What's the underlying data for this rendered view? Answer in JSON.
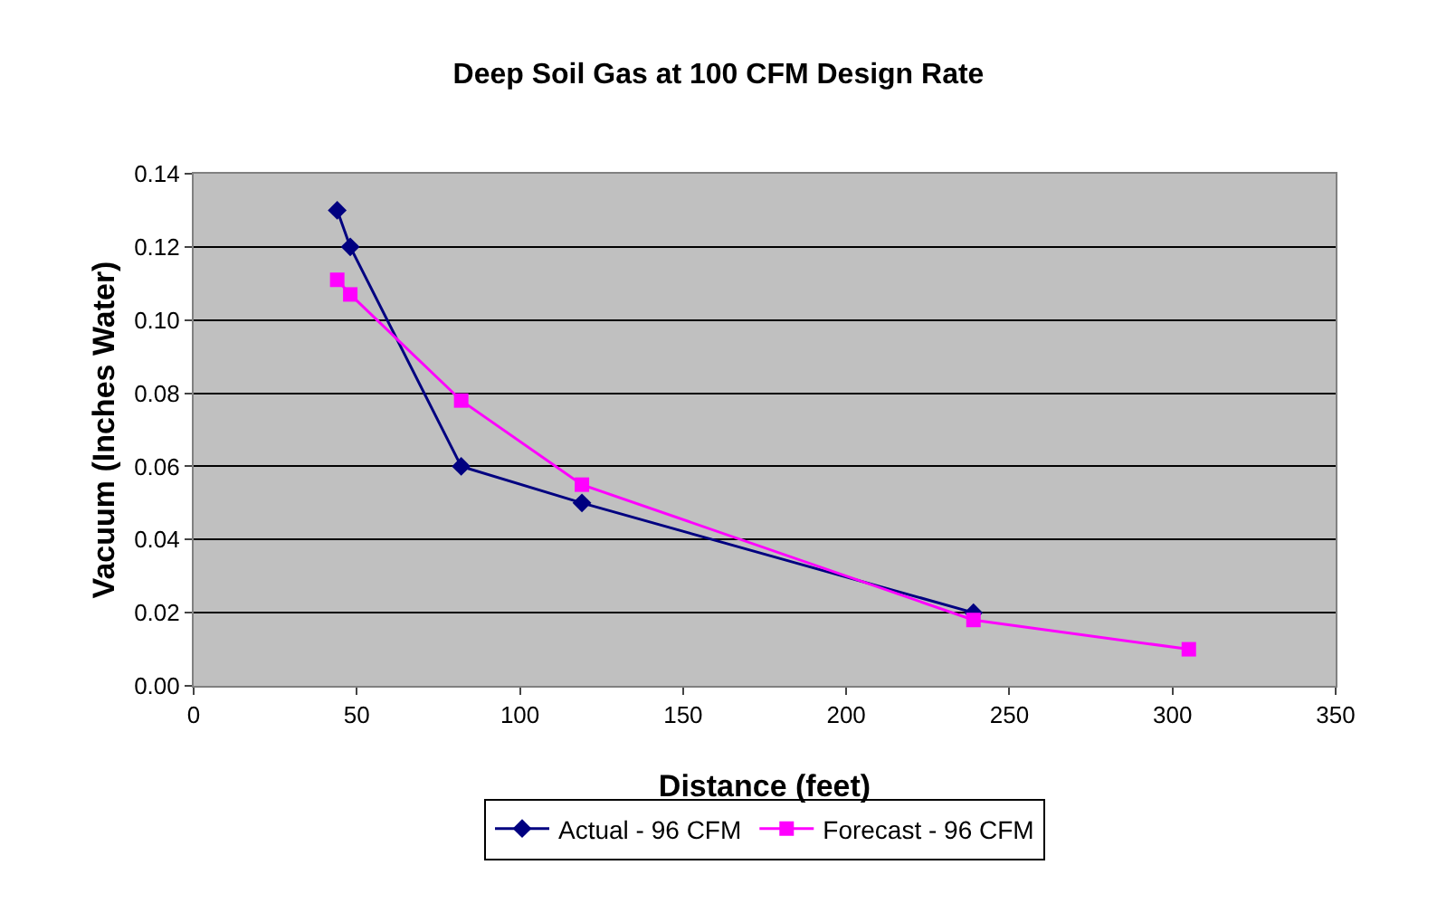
{
  "chart_data": {
    "type": "line",
    "title": "Deep Soil Gas at 100 CFM Design Rate",
    "xlabel": "Distance (feet)",
    "ylabel": "Vacuum (Inches Water)",
    "xlim": [
      0,
      350
    ],
    "xticks": [
      0,
      50,
      100,
      150,
      200,
      250,
      300,
      350
    ],
    "ylim": [
      0,
      0.14
    ],
    "yticks": [
      {
        "value": 0,
        "label": "0.00"
      },
      {
        "value": 0.02,
        "label": "0.02"
      },
      {
        "value": 0.04,
        "label": "0.04"
      },
      {
        "value": 0.06,
        "label": "0.06"
      },
      {
        "value": 0.08,
        "label": "0.08"
      },
      {
        "value": 0.1,
        "label": "0.10"
      },
      {
        "value": 0.12,
        "label": "0.12"
      },
      {
        "value": 0.14,
        "label": "0.14"
      }
    ],
    "grid": "y",
    "legend": "bottom",
    "line_style": "solid",
    "series": [
      {
        "name": "Actual - 96 CFM",
        "color": "#000080",
        "marker": "diamond",
        "x": [
          44,
          48,
          82,
          119,
          239
        ],
        "values": [
          0.13,
          0.12,
          0.06,
          0.05,
          0.02
        ]
      },
      {
        "name": "Forecast - 96 CFM",
        "color": "#ff00ff",
        "marker": "square",
        "x": [
          44,
          48,
          82,
          119,
          239,
          305
        ],
        "values": [
          0.111,
          0.107,
          0.078,
          0.055,
          0.018,
          0.01
        ]
      }
    ]
  }
}
